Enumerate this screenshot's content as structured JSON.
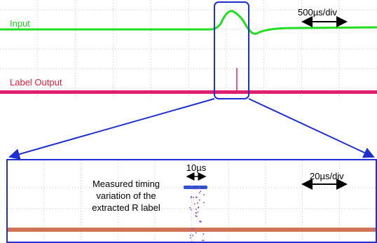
{
  "top": {
    "input_label": "Input",
    "time_scale": "500µs/div",
    "output_label": "Label Output"
  },
  "bottom": {
    "window_label": "10µs",
    "annotation": [
      "Measured timing",
      "variation of the",
      "extracted R label"
    ],
    "time_scale": "20µs/div"
  }
}
